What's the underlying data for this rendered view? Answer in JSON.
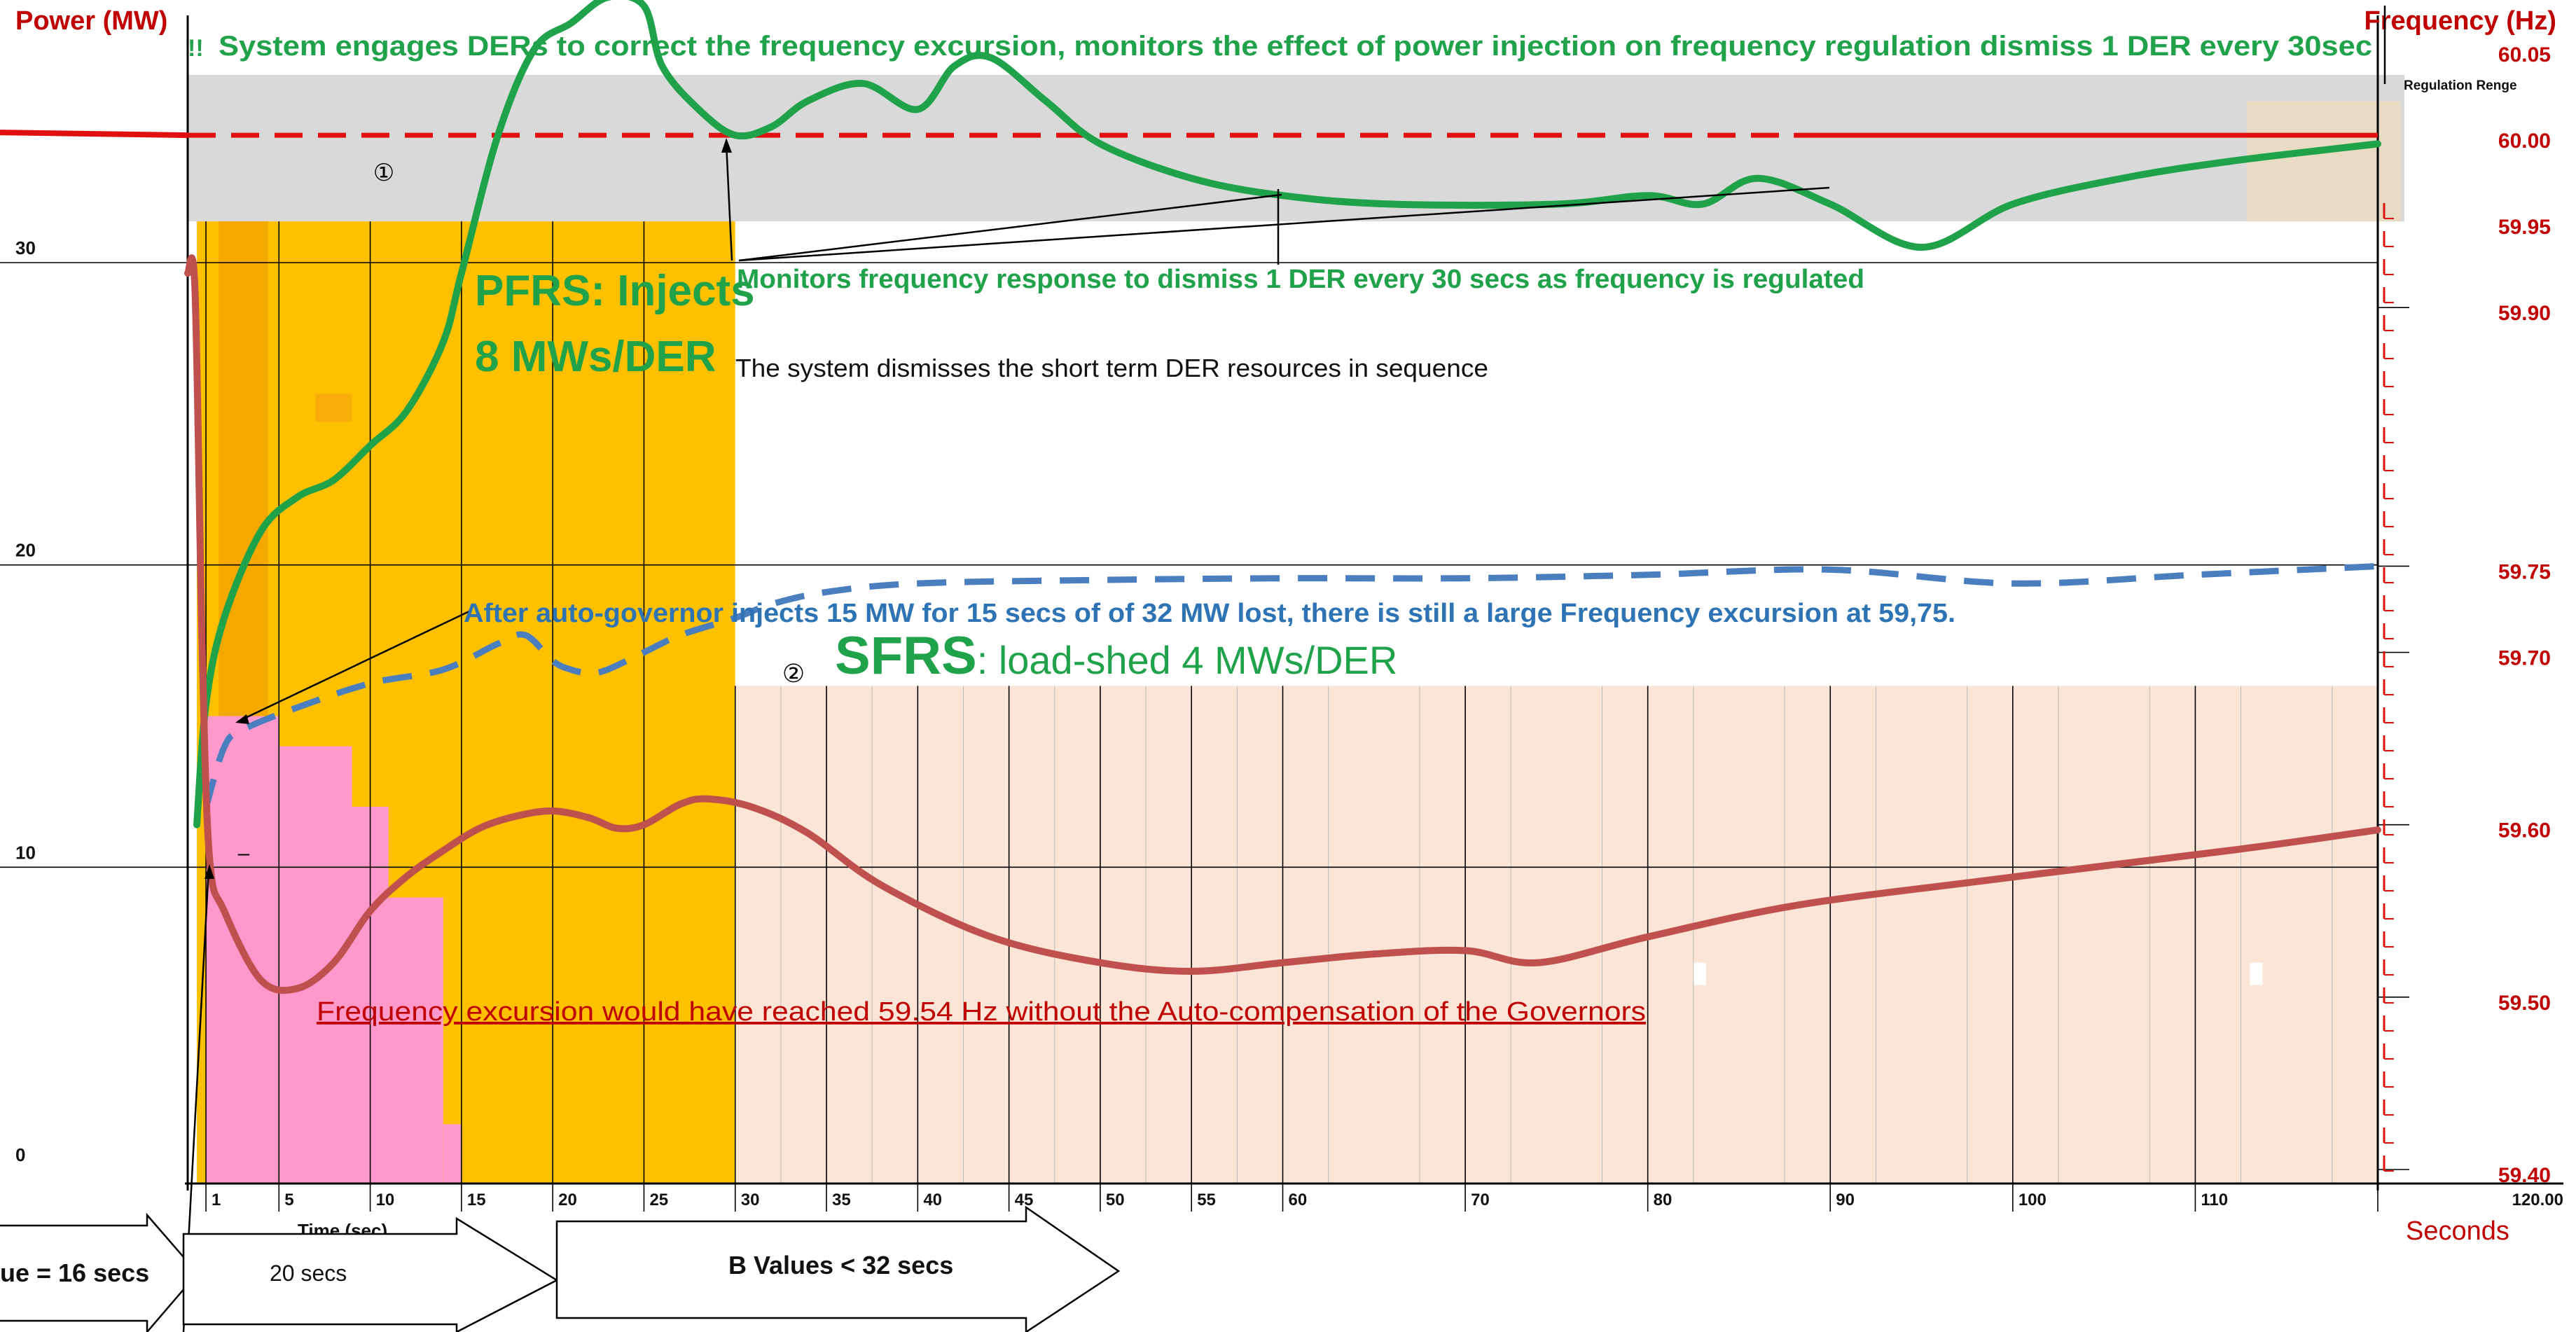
{
  "chart_data": {
    "type": "line",
    "title": "",
    "axis_left_title": "Power (MW)",
    "axis_right_title": "Frequency (Hz)",
    "axis_x_unit": "Seconds",
    "axis_x_label": "Time (sec)",
    "power_ticks": [
      {
        "label": "30",
        "value": 30
      },
      {
        "label": "20",
        "value": 20
      },
      {
        "label": "10",
        "value": 10
      },
      {
        "label": "0",
        "value": 0
      }
    ],
    "freq_ticks": [
      {
        "label": "60.05",
        "value": 60.05
      },
      {
        "label": "60.00",
        "value": 60.0
      },
      {
        "label": "59.95",
        "value": 59.95
      },
      {
        "label": "59.90",
        "value": 59.9
      },
      {
        "label": "59.75",
        "value": 59.75
      },
      {
        "label": "59.70",
        "value": 59.7
      },
      {
        "label": "59.60",
        "value": 59.6
      },
      {
        "label": "59.50",
        "value": 59.5
      },
      {
        "label": "59.40",
        "value": 59.4
      }
    ],
    "time_ticks": [
      {
        "label": "1",
        "value": 1
      },
      {
        "label": "5",
        "value": 5
      },
      {
        "label": "10",
        "value": 10
      },
      {
        "label": "15",
        "value": 15
      },
      {
        "label": "20",
        "value": 20
      },
      {
        "label": "25",
        "value": 25
      },
      {
        "label": "30",
        "value": 30
      },
      {
        "label": "35",
        "value": 35
      },
      {
        "label": "40",
        "value": 40
      },
      {
        "label": "45",
        "value": 45
      },
      {
        "label": "50",
        "value": 50
      },
      {
        "label": "55",
        "value": 55
      },
      {
        "label": "60",
        "value": 60
      },
      {
        "label": "70",
        "value": 70
      },
      {
        "label": "80",
        "value": 80
      },
      {
        "label": "90",
        "value": 90
      },
      {
        "label": "100",
        "value": 100
      },
      {
        "label": "110",
        "value": 110
      },
      {
        "label": "120.00",
        "value": 120
      }
    ],
    "regulation_range_label": "Regulation Renge",
    "regulation_band_hz": [
      59.95,
      60.035
    ],
    "series": [
      {
        "name": "",
        "color": "#1fa24a",
        "style": "solid",
        "points": [
          [
            0.5,
            59.6
          ],
          [
            1,
            59.67
          ],
          [
            2,
            59.72
          ],
          [
            4,
            59.77
          ],
          [
            6,
            59.79
          ],
          [
            8,
            59.8
          ],
          [
            10,
            59.82
          ],
          [
            12,
            59.84
          ],
          [
            14,
            59.88
          ],
          [
            15,
            59.92
          ],
          [
            17,
            60.0
          ],
          [
            19,
            60.05
          ],
          [
            21,
            60.065
          ],
          [
            23,
            60.08
          ],
          [
            25,
            60.075
          ],
          [
            26,
            60.04
          ],
          [
            28,
            60.015
          ],
          [
            30,
            60.0
          ],
          [
            32,
            60.005
          ],
          [
            34,
            60.02
          ],
          [
            37,
            60.03
          ],
          [
            40,
            60.015
          ],
          [
            42,
            60.04
          ],
          [
            44,
            60.045
          ],
          [
            47,
            60.02
          ],
          [
            50,
            59.995
          ],
          [
            55,
            59.975
          ],
          [
            60,
            59.965
          ],
          [
            66,
            59.96
          ],
          [
            75,
            59.96
          ],
          [
            80,
            59.965
          ],
          [
            83,
            59.96
          ],
          [
            86,
            59.975
          ],
          [
            90,
            59.96
          ],
          [
            95,
            59.935
          ],
          [
            100,
            59.96
          ],
          [
            106,
            59.975
          ],
          [
            112,
            59.985
          ],
          [
            120,
            59.995
          ]
        ]
      },
      {
        "name": "",
        "color": "#4a7ebf",
        "style": "dashed",
        "points": [
          [
            1,
            59.61
          ],
          [
            2,
            59.645
          ],
          [
            3,
            59.655
          ],
          [
            6,
            59.668
          ],
          [
            10,
            59.682
          ],
          [
            14,
            59.69
          ],
          [
            17,
            59.705
          ],
          [
            18.5,
            59.71
          ],
          [
            20,
            59.695
          ],
          [
            21,
            59.69
          ],
          [
            22,
            59.688
          ],
          [
            23,
            59.69
          ],
          [
            25,
            59.7
          ],
          [
            27,
            59.71
          ],
          [
            30,
            59.72
          ],
          [
            32,
            59.728
          ],
          [
            35,
            59.735
          ],
          [
            40,
            59.74
          ],
          [
            50,
            59.742
          ],
          [
            60,
            59.743
          ],
          [
            70,
            59.743
          ],
          [
            80,
            59.745
          ],
          [
            90,
            59.748
          ],
          [
            100,
            59.74
          ],
          [
            110,
            59.745
          ],
          [
            120,
            59.75
          ]
        ]
      },
      {
        "name": "",
        "color": "#c0504d",
        "style": "solid",
        "points": [
          [
            0,
            59.92
          ],
          [
            0.4,
            59.91
          ],
          [
            0.8,
            59.7
          ],
          [
            1.2,
            59.58
          ],
          [
            2,
            59.55
          ],
          [
            4,
            59.51
          ],
          [
            6,
            59.505
          ],
          [
            8,
            59.52
          ],
          [
            10,
            59.55
          ],
          [
            12,
            59.57
          ],
          [
            14,
            59.585
          ],
          [
            16,
            59.598
          ],
          [
            18,
            59.605
          ],
          [
            20,
            59.608
          ],
          [
            22,
            59.604
          ],
          [
            23.5,
            59.598
          ],
          [
            25,
            59.6
          ],
          [
            27,
            59.612
          ],
          [
            28.5,
            59.615
          ],
          [
            31,
            59.61
          ],
          [
            34,
            59.595
          ],
          [
            38,
            59.565
          ],
          [
            44,
            59.535
          ],
          [
            50,
            59.52
          ],
          [
            55,
            59.515
          ],
          [
            60,
            59.52
          ],
          [
            65,
            59.525
          ],
          [
            70,
            59.527
          ],
          [
            74,
            59.52
          ],
          [
            80,
            59.535
          ],
          [
            88,
            59.553
          ],
          [
            98,
            59.567
          ],
          [
            108,
            59.58
          ],
          [
            114,
            59.588
          ],
          [
            120,
            59.597
          ]
        ]
      }
    ],
    "nominal_frequency_hz": 60.0,
    "step_bars_mw": [
      {
        "from": 1,
        "to": 5,
        "value": 15
      },
      {
        "from": 5,
        "to": 9,
        "value": 14
      },
      {
        "from": 9,
        "to": 11,
        "value": 12
      },
      {
        "from": 11,
        "to": 14,
        "value": 9
      },
      {
        "from": 14,
        "to": 15,
        "value": 1.5
      }
    ]
  },
  "annotations": {
    "top_banner": "System engages DERs to correct the frequency excursion, monitors the effect of power injection on frequency regulation dismiss 1 DER every 30sec",
    "pfrs_line1": "PFRS: Injects",
    "pfrs_line2": "8 MWs/DER",
    "monitors": "Monitors frequency response to dismiss 1 DER every 30 secs as frequency is regulated",
    "dismisses": "The system dismisses the short term DER resources in sequence",
    "governor": "After auto-governor injects 15 MW for 15 secs of of 32 MW lost, there is still a large Frequency excursion at 59,75.",
    "sfrs_bold": "SFRS",
    "sfrs_rest": ": load-shed 4 MWs/DER",
    "excursion": "Frequency excursion would have reached 59.54 Hz without the Auto-compensation of the Governors",
    "marker1": "①",
    "marker2": "②",
    "dash_mark": "–"
  },
  "arrows": {
    "left_label": "ue = 16 secs",
    "mid_label": "20 secs",
    "right_label": "B Values < 32 secs"
  },
  "colors": {
    "frequency_line": "#1fa24a",
    "power_dashed": "#4a7ebf",
    "red_curve": "#c0504d",
    "nominal_line": "#e01010",
    "axis_text_red": "#c00000",
    "pfrs_region": "#ffc000",
    "sfrs_region": "#fbe5d6",
    "step_bars": "#ff99cc",
    "regulation_band": "#d9d9d9"
  }
}
